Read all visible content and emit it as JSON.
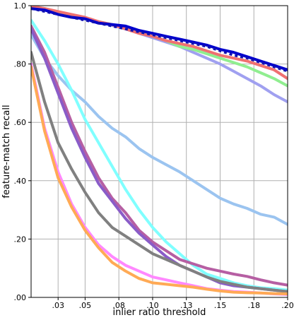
{
  "chart_data": {
    "type": "line",
    "title": "",
    "xlabel": "inlier ratio threshold",
    "ylabel": "feature-match recall",
    "xlim": [
      0.01,
      0.2
    ],
    "ylim": [
      0.0,
      1.0
    ],
    "grid": true,
    "xticks": [
      0.03,
      0.05,
      0.075,
      0.1,
      0.125,
      0.15,
      0.175,
      0.2
    ],
    "xtick_labels": [
      ".03",
      ".05",
      ".08",
      ".10",
      ".13",
      ".15",
      ".18",
      ".20"
    ],
    "yticks": [
      0.0,
      0.2,
      0.4,
      0.6,
      0.8,
      1.0
    ],
    "ytick_labels": [
      ".00",
      ".20",
      ".40",
      ".60",
      ".80",
      "1.0"
    ],
    "x": [
      0.01,
      0.02,
      0.03,
      0.04,
      0.05,
      0.06,
      0.07,
      0.08,
      0.09,
      0.1,
      0.11,
      0.12,
      0.13,
      0.14,
      0.15,
      0.16,
      0.17,
      0.18,
      0.19,
      0.2
    ],
    "series": [
      {
        "color": "#a0a0f0",
        "dashed": false,
        "values": [
          0.998,
          0.99,
          0.975,
          0.965,
          0.955,
          0.945,
          0.932,
          0.92,
          0.905,
          0.89,
          0.875,
          0.86,
          0.84,
          0.82,
          0.8,
          0.775,
          0.75,
          0.725,
          0.695,
          0.67
        ]
      },
      {
        "color": "#90ee90",
        "dashed": false,
        "values": [
          0.998,
          0.99,
          0.978,
          0.968,
          0.958,
          0.945,
          0.935,
          0.922,
          0.91,
          0.895,
          0.88,
          0.86,
          0.85,
          0.835,
          0.82,
          0.805,
          0.79,
          0.77,
          0.75,
          0.725
        ]
      },
      {
        "color": "#f07070",
        "dashed": false,
        "values": [
          0.998,
          0.99,
          0.98,
          0.97,
          0.96,
          0.945,
          0.935,
          0.92,
          0.905,
          0.895,
          0.88,
          0.87,
          0.86,
          0.845,
          0.83,
          0.82,
          0.81,
          0.795,
          0.78,
          0.75
        ]
      },
      {
        "color": "#0000cd",
        "dashed": false,
        "values": [
          0.99,
          0.985,
          0.97,
          0.96,
          0.955,
          0.94,
          0.935,
          0.93,
          0.915,
          0.905,
          0.895,
          0.885,
          0.875,
          0.865,
          0.85,
          0.84,
          0.825,
          0.81,
          0.795,
          0.78
        ]
      },
      {
        "color": "#1010b0",
        "dashed": true,
        "values": [
          0.99,
          0.98,
          0.97,
          0.96,
          0.95,
          0.94,
          0.93,
          0.92,
          0.91,
          0.9,
          0.89,
          0.88,
          0.87,
          0.86,
          0.845,
          0.83,
          0.82,
          0.805,
          0.79,
          0.775
        ]
      },
      {
        "color": "#9bc4f0",
        "dashed": false,
        "values": [
          0.9,
          0.82,
          0.76,
          0.71,
          0.67,
          0.62,
          0.58,
          0.55,
          0.51,
          0.48,
          0.455,
          0.43,
          0.4,
          0.37,
          0.34,
          0.32,
          0.305,
          0.285,
          0.275,
          0.25
        ]
      },
      {
        "color": "#80ffff",
        "dashed": false,
        "values": [
          0.95,
          0.88,
          0.8,
          0.71,
          0.61,
          0.53,
          0.45,
          0.37,
          0.3,
          0.24,
          0.19,
          0.15,
          0.11,
          0.08,
          0.065,
          0.05,
          0.04,
          0.033,
          0.03,
          0.025
        ]
      },
      {
        "color": "#b65fa3",
        "dashed": false,
        "values": [
          0.93,
          0.84,
          0.72,
          0.6,
          0.5,
          0.41,
          0.34,
          0.29,
          0.23,
          0.19,
          0.16,
          0.13,
          0.115,
          0.1,
          0.09,
          0.08,
          0.072,
          0.06,
          0.05,
          0.042
        ]
      },
      {
        "color": "#8a5cc8",
        "dashed": false,
        "values": [
          0.92,
          0.82,
          0.7,
          0.58,
          0.48,
          0.39,
          0.33,
          0.27,
          0.22,
          0.18,
          0.14,
          0.11,
          0.09,
          0.07,
          0.05,
          0.04,
          0.035,
          0.03,
          0.025,
          0.02
        ]
      },
      {
        "color": "#808080",
        "dashed": false,
        "values": [
          0.84,
          0.67,
          0.53,
          0.44,
          0.36,
          0.29,
          0.24,
          0.21,
          0.18,
          0.15,
          0.13,
          0.11,
          0.09,
          0.07,
          0.055,
          0.045,
          0.035,
          0.03,
          0.025,
          0.02
        ]
      },
      {
        "color": "#ff88ff",
        "dashed": false,
        "values": [
          0.8,
          0.58,
          0.43,
          0.32,
          0.24,
          0.18,
          0.14,
          0.11,
          0.09,
          0.07,
          0.06,
          0.05,
          0.04,
          0.03,
          0.025,
          0.02,
          0.018,
          0.015,
          0.012,
          0.01
        ]
      },
      {
        "color": "#ffaa55",
        "dashed": false,
        "values": [
          0.79,
          0.57,
          0.41,
          0.31,
          0.23,
          0.17,
          0.12,
          0.09,
          0.065,
          0.05,
          0.045,
          0.04,
          0.035,
          0.028,
          0.022,
          0.018,
          0.016,
          0.015,
          0.013,
          0.012
        ]
      }
    ]
  }
}
